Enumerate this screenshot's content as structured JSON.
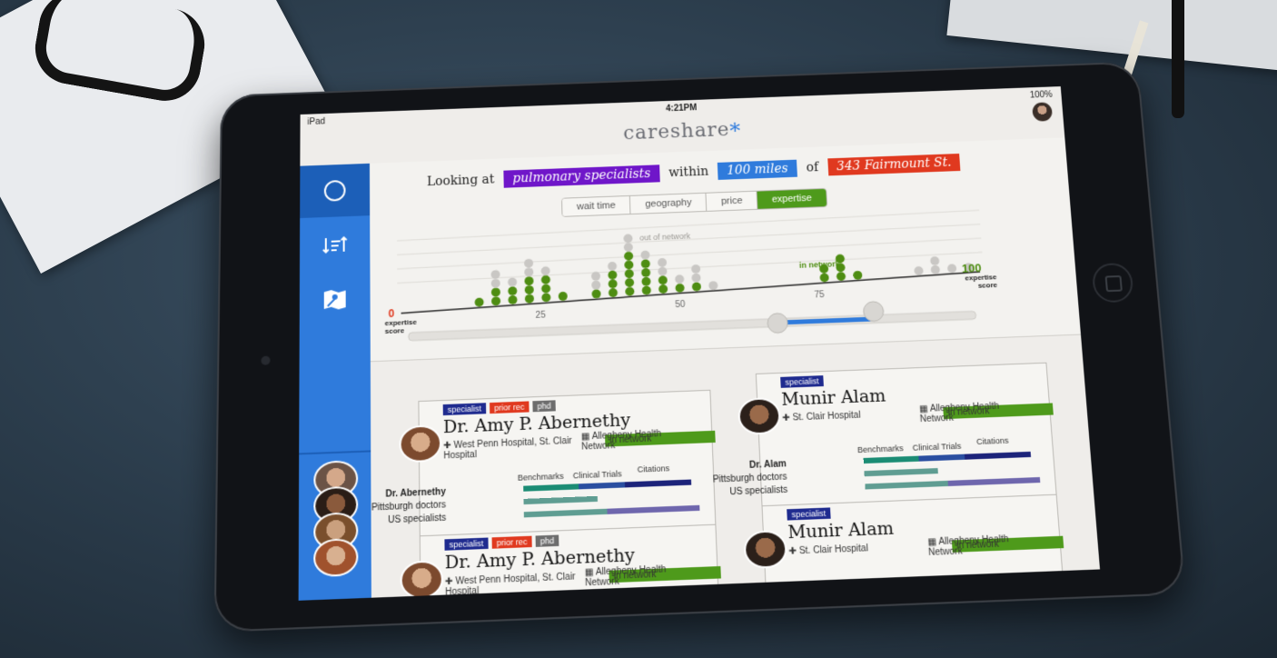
{
  "device": {
    "carrier": "iPad",
    "time": "4:21PM",
    "battery": "100%"
  },
  "app": {
    "brand": "careshare",
    "brand_mark": "*"
  },
  "query": {
    "prefix": "Looking at",
    "specialty": "pulmonary specialists",
    "within_label": "within",
    "distance": "100 miles",
    "of_label": "of",
    "location": "343 Fairmount St."
  },
  "sort_tabs": [
    "wait time",
    "geography",
    "price",
    "expertise"
  ],
  "active_tab": "expertise",
  "chart_data": {
    "type": "scatter",
    "description_labels": {
      "out_of_network": "out of network",
      "in_network": "in network"
    },
    "axis": {
      "min_value": "0",
      "min_label": "expertise score",
      "max_value": "100",
      "max_label": "expertise score",
      "ticks": [
        "25",
        "50",
        "75"
      ]
    },
    "columns": [
      {
        "x": 14,
        "in": 1,
        "out": 0
      },
      {
        "x": 17,
        "in": 2,
        "out": 2
      },
      {
        "x": 20,
        "in": 2,
        "out": 1
      },
      {
        "x": 23,
        "in": 3,
        "out": 2
      },
      {
        "x": 26,
        "in": 3,
        "out": 1
      },
      {
        "x": 29,
        "in": 1,
        "out": 0
      },
      {
        "x": 35,
        "in": 1,
        "out": 2
      },
      {
        "x": 38,
        "in": 3,
        "out": 1
      },
      {
        "x": 41,
        "in": 5,
        "out": 2
      },
      {
        "x": 44,
        "in": 4,
        "out": 1
      },
      {
        "x": 47,
        "in": 2,
        "out": 2
      },
      {
        "x": 50,
        "in": 1,
        "out": 1
      },
      {
        "x": 53,
        "in": 1,
        "out": 2
      },
      {
        "x": 56,
        "in": 0,
        "out": 1
      },
      {
        "x": 76,
        "in": 2,
        "out": 0
      },
      {
        "x": 79,
        "in": 3,
        "out": 0
      },
      {
        "x": 82,
        "in": 1,
        "out": 0
      },
      {
        "x": 93,
        "in": 0,
        "out": 1
      },
      {
        "x": 96,
        "in": 0,
        "out": 2
      },
      {
        "x": 99,
        "in": 0,
        "out": 1
      },
      {
        "x": 102,
        "in": 0,
        "out": 1
      }
    ],
    "range_slider": {
      "low": 65,
      "high": 82
    },
    "colors": {
      "in": "#4e8d12",
      "out": "#c9c7c4"
    }
  },
  "benchmark_labels": {
    "benchmarks": "Benchmarks",
    "clinical_trials": "Clinical Trials",
    "citations": "Citations"
  },
  "doctors": [
    {
      "tags": [
        "in network",
        "specialist",
        "prior rec",
        "phd"
      ],
      "name": "Dr. Amy P. Abernethy",
      "hospitals": "West Penn Hospital, St. Clair Hospital",
      "network": "Allegheny Health Network",
      "rows": [
        "Dr. Abernethy",
        "Pittsburgh doctors",
        "US specialists"
      ]
    },
    {
      "tags": [
        "in network",
        "specialist"
      ],
      "name": "Munir Alam",
      "hospitals": "St. Clair Hospital",
      "network": "Allegheny Health Network",
      "rows": [
        "Dr. Alam",
        "Pittsburgh doctors",
        "US specialists"
      ]
    },
    {
      "tags": [
        "in network",
        "specialist",
        "prior rec",
        "phd"
      ],
      "name": "Dr. Amy P. Abernethy",
      "hospitals": "West Penn Hospital, St. Clair Hospital",
      "network": "Allegheny Health Network"
    },
    {
      "tags": [
        "in network",
        "specialist"
      ],
      "name": "Munir Alam",
      "hospitals": "St. Clair Hospital",
      "network": "Allegheny Health Network"
    }
  ],
  "icons": {
    "compass": "compass-icon",
    "sort": "sort-icon",
    "map": "map-icon",
    "hospital": "hospital-icon",
    "network": "network-building-icon"
  }
}
